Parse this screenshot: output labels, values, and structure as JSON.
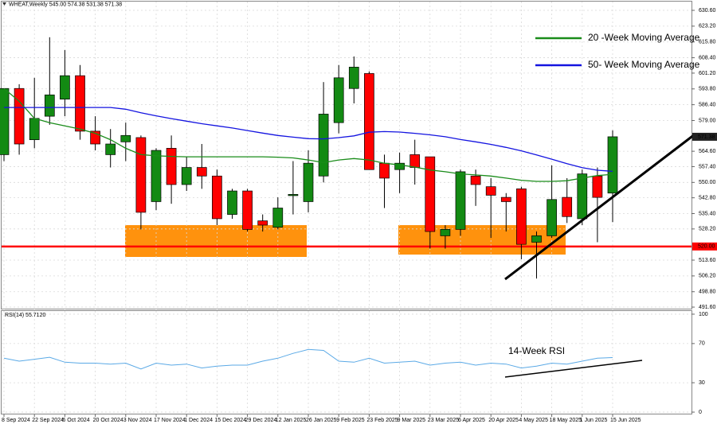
{
  "chart_data": [
    {
      "type": "candlestick",
      "title": "WHEAT,Weekly 545.00 574.38 531.38 571.38",
      "categories": [
        "8 Sep 2024",
        null,
        "22 Sep 2024",
        null,
        "6 Oct 2024",
        null,
        "20 Oct 2024",
        null,
        "3 Nov 2024",
        null,
        "17 Nov 2024",
        null,
        "1 Dec 2024",
        null,
        "15 Dec 2024",
        null,
        "29 Dec 2024",
        null,
        "12 Jan 2025",
        null,
        "26 Jan 2025",
        null,
        "9 Feb 2025",
        null,
        "23 Feb 2025",
        null,
        "9 Mar 2025",
        null,
        "23 Mar 2025",
        null,
        "6 Apr 2025",
        null,
        "20 Apr 2025",
        null,
        "4 May 2025",
        null,
        "18 May 2025",
        null,
        "1 Jun 2025",
        null,
        "15 Jun 2025"
      ],
      "open": [
        563,
        594,
        570,
        581,
        589,
        600,
        574,
        563,
        569,
        571,
        541,
        566,
        549,
        557,
        553,
        535,
        546,
        532,
        529,
        543.8,
        541,
        553,
        578,
        594,
        601,
        559,
        556,
        563,
        562,
        525,
        528,
        553,
        548,
        543,
        547,
        522,
        525,
        543,
        533,
        553,
        545
      ],
      "high": [
        594,
        596,
        599,
        618,
        612,
        605,
        581,
        575,
        578,
        572,
        566,
        572,
        562,
        568,
        556,
        547,
        547,
        535,
        543,
        560,
        565,
        597,
        605,
        609,
        602,
        563,
        564,
        570,
        562,
        530,
        556,
        556,
        552,
        545,
        548,
        527,
        558,
        552,
        556,
        557,
        574.38
      ],
      "low": [
        560,
        563,
        566,
        577,
        581,
        570,
        565,
        557,
        560,
        528,
        537,
        540,
        546,
        547,
        530,
        533,
        527,
        527,
        528,
        535,
        536,
        550,
        573,
        587,
        556,
        538,
        545,
        549,
        519,
        519,
        525,
        539,
        524,
        527,
        514,
        505,
        524,
        531,
        530,
        522,
        531.38
      ],
      "close": [
        594,
        568,
        580,
        591,
        600,
        574,
        568,
        568,
        572,
        536,
        565,
        549,
        557,
        553,
        533,
        546,
        528,
        530,
        538,
        544.4,
        559,
        582,
        599,
        604,
        556,
        552,
        559,
        557,
        527,
        528,
        555,
        549,
        544,
        541,
        521,
        525,
        542,
        534,
        554,
        543,
        571.38
      ],
      "up_color": "#138a13",
      "down_color": "#ff0000",
      "series": [
        {
          "name": "20 -Week Moving Average",
          "color": "#1a8c1a",
          "values": [
            594.0,
            588,
            580,
            578,
            576.5,
            575,
            573,
            570,
            566,
            563,
            562.5,
            562.2,
            562,
            562,
            562,
            562,
            562,
            562,
            561.8,
            561.5,
            560.5,
            559.3,
            560.5,
            561.2,
            560.5,
            559,
            558.2,
            557.2,
            555.8,
            555,
            554,
            553.5,
            553,
            552,
            551,
            550.5,
            550.5,
            550.8,
            552,
            553.2,
            553.8
          ]
        },
        {
          "name": "50- Week Moving Average",
          "color": "#1414e0",
          "values": [
            585.1,
            585.1,
            585.1,
            585.1,
            585.1,
            585.1,
            585.1,
            585.1,
            584.3,
            582.6,
            581.2,
            579.9,
            578.7,
            577.5,
            576.5,
            575.5,
            574.3,
            573.1,
            572.0,
            571.2,
            570.5,
            570.4,
            571.0,
            571.8,
            573.5,
            573.8,
            573.6,
            573.0,
            572.3,
            571.4,
            570.1,
            569.0,
            567.8,
            566.4,
            564.8,
            562.9,
            560.9,
            558.8,
            556.9,
            555.7,
            555.2
          ]
        }
      ],
      "legend": "top-right",
      "ylim": [
        490.5,
        634.7
      ],
      "yticks": [
        {
          "value": 630.6,
          "label": "630.60"
        },
        {
          "value": 623.2,
          "label": "623.20"
        },
        {
          "value": 615.8,
          "label": "615.80"
        },
        {
          "value": 608.4,
          "label": "608.40"
        },
        {
          "value": 601.2,
          "label": "601.20"
        },
        {
          "value": 593.8,
          "label": "593.80"
        },
        {
          "value": 586.4,
          "label": "586.40"
        },
        {
          "value": 579.0,
          "label": "579.00"
        },
        {
          "value": 564.6,
          "label": "564.60"
        },
        {
          "value": 557.4,
          "label": "557.40"
        },
        {
          "value": 550.0,
          "label": "550.00"
        },
        {
          "value": 542.8,
          "label": "542.80"
        },
        {
          "value": 535.4,
          "label": "535.40"
        },
        {
          "value": 528.2,
          "label": "528.20"
        },
        {
          "value": 513.6,
          "label": "513.60"
        },
        {
          "value": 506.2,
          "label": "506.20"
        },
        {
          "value": 498.8,
          "label": "498.80"
        },
        {
          "value": 491.6,
          "label": "491.60"
        }
      ],
      "hline": {
        "value": 520,
        "label": "520.00",
        "color": "#ff0000"
      },
      "last_price": {
        "value": 571.38,
        "label": "571.38"
      },
      "grid": true
    },
    {
      "type": "line",
      "title": "RSI(14) 55.7120",
      "series": [
        {
          "name": "RSI(14)",
          "color": "#5aa9e6",
          "values": [
            55,
            52,
            54,
            56,
            51,
            50,
            50,
            49,
            50,
            44,
            50,
            48,
            49,
            45,
            47,
            48,
            48,
            52,
            55,
            60,
            64,
            63,
            52,
            51,
            55,
            50,
            51,
            52,
            48,
            50,
            51,
            48,
            50,
            49,
            45,
            47,
            50,
            49,
            52,
            55,
            55.712
          ]
        }
      ],
      "annotation": "14-Week RSI",
      "ylim": [
        -2.4,
        103.2
      ],
      "yticks": [
        100,
        70,
        30,
        0
      ],
      "grid": true
    }
  ]
}
